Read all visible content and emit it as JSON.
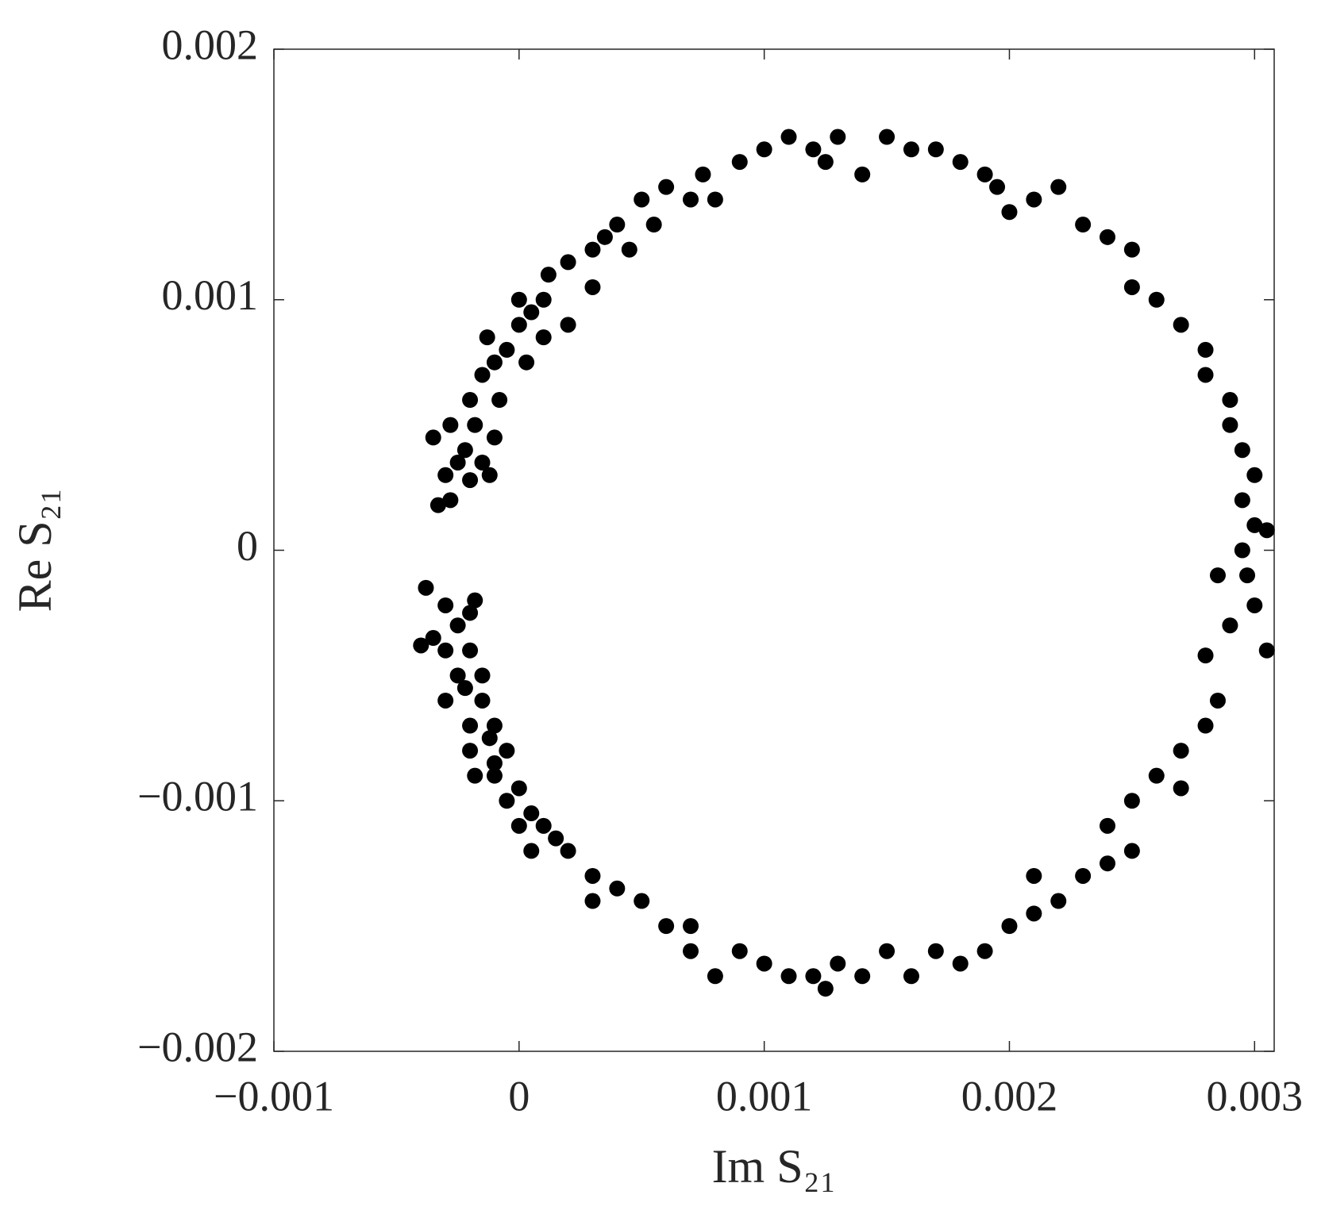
{
  "chart_data": {
    "type": "scatter",
    "xlabel": "Im S₂₁",
    "ylabel": "Re S₂₁",
    "color": "#000000",
    "xlim": [
      -0.001,
      0.00308
    ],
    "ylim": [
      -0.002,
      0.002
    ],
    "xticks": [
      {
        "value": -0.001,
        "label": "−0.001"
      },
      0,
      0.001,
      0.002,
      0.003
    ],
    "yticks": [
      {
        "value": -0.002,
        "label": "−0.002"
      },
      {
        "value": -0.001,
        "label": "−0.001"
      },
      0,
      0.001,
      0.002
    ],
    "x": [
      -0.00035,
      -0.00033,
      -0.00028,
      -0.0003,
      -0.00025,
      -0.00028,
      -0.00022,
      -0.0002,
      -0.00018,
      -0.00015,
      -0.0002,
      -0.00012,
      -0.0001,
      -0.00015,
      -8e-05,
      -0.0001,
      -5e-05,
      -0.00013,
      0,
      3e-05,
      5e-05,
      0,
      0.0001,
      0.0001,
      0.0002,
      0.00012,
      0.0002,
      0.0003,
      0.0003,
      0.00035,
      0.00045,
      0.0004,
      0.0005,
      0.00055,
      0.0006,
      0.0007,
      0.00075,
      0.0008,
      0.0009,
      0.001,
      0.0011,
      0.0012,
      0.00125,
      0.0013,
      0.0014,
      0.0015,
      0.0016,
      0.0017,
      0.0018,
      0.0019,
      0.00195,
      0.002,
      0.0021,
      0.0022,
      0.0023,
      0.0024,
      0.0025,
      0.0025,
      0.0026,
      0.0027,
      0.0028,
      0.0028,
      0.0029,
      0.0029,
      0.00295,
      0.003,
      0.00295,
      0.003,
      0.00305,
      0.00295,
      0.00297,
      0.00285,
      0.003,
      0.0029,
      0.00305,
      0.0028,
      0.00285,
      0.0028,
      0.0027,
      0.0026,
      0.0027,
      0.0025,
      0.0024,
      0.0025,
      0.0024,
      0.0023,
      0.0022,
      0.0021,
      0.0021,
      0.002,
      0.0019,
      0.0018,
      0.0017,
      0.0016,
      0.0015,
      0.0014,
      0.0013,
      0.0012,
      0.00125,
      0.0011,
      0.001,
      0.0009,
      0.0008,
      0.0007,
      0.0006,
      0.0005,
      0.0004,
      0.0003,
      0.0002,
      0.00015,
      0.0001,
      5e-05,
      0,
      0,
      -5e-05,
      -0.0001,
      -5e-05,
      -0.00012,
      -0.0002,
      -0.0001,
      -0.00015,
      -0.0002,
      -0.0003,
      -0.00025,
      -0.0002,
      -0.0003,
      -0.00035,
      -0.0004,
      -0.00025,
      -0.0002,
      -0.0003,
      -0.00038,
      -0.00018,
      -0.00015,
      -0.00022,
      -0.0001,
      -0.00018,
      5e-05,
      0.0003,
      0.0007
    ],
    "values": [
      0.00045,
      0.00018,
      0.0002,
      0.0003,
      0.00035,
      0.0005,
      0.0004,
      0.0006,
      0.0005,
      0.00035,
      0.00028,
      0.0003,
      0.00045,
      0.0007,
      0.0006,
      0.00075,
      0.0008,
      0.00085,
      0.0009,
      0.00075,
      0.00095,
      0.001,
      0.001,
      0.00085,
      0.0009,
      0.0011,
      0.00115,
      0.00105,
      0.0012,
      0.00125,
      0.0012,
      0.0013,
      0.0014,
      0.0013,
      0.00145,
      0.0014,
      0.0015,
      0.0014,
      0.00155,
      0.0016,
      0.00165,
      0.0016,
      0.00155,
      0.00165,
      0.0015,
      0.00165,
      0.0016,
      0.0016,
      0.00155,
      0.0015,
      0.00145,
      0.00135,
      0.0014,
      0.00145,
      0.0013,
      0.00125,
      0.0012,
      0.00105,
      0.001,
      0.0009,
      0.0008,
      0.0007,
      0.0006,
      0.0005,
      0.0004,
      0.0003,
      0.0002,
      0.0001,
      8e-05,
      0,
      -0.0001,
      -0.0001,
      -0.00022,
      -0.0003,
      -0.0004,
      -0.00042,
      -0.0006,
      -0.0007,
      -0.0008,
      -0.0009,
      -0.00095,
      -0.001,
      -0.0011,
      -0.0012,
      -0.00125,
      -0.0013,
      -0.0014,
      -0.0013,
      -0.00145,
      -0.0015,
      -0.0016,
      -0.00165,
      -0.0016,
      -0.0017,
      -0.0016,
      -0.0017,
      -0.00165,
      -0.0017,
      -0.00175,
      -0.0017,
      -0.00165,
      -0.0016,
      -0.0017,
      -0.0016,
      -0.0015,
      -0.0014,
      -0.00135,
      -0.0013,
      -0.0012,
      -0.00115,
      -0.0011,
      -0.00105,
      -0.0011,
      -0.00095,
      -0.001,
      -0.0009,
      -0.0008,
      -0.00075,
      -0.0008,
      -0.0007,
      -0.0006,
      -0.0007,
      -0.0006,
      -0.0005,
      -0.0004,
      -0.0004,
      -0.00035,
      -0.00038,
      -0.0003,
      -0.00025,
      -0.00022,
      -0.00015,
      -0.0002,
      -0.0005,
      -0.00055,
      -0.00085,
      -0.0009,
      -0.0012,
      -0.0014,
      -0.0015
    ]
  }
}
